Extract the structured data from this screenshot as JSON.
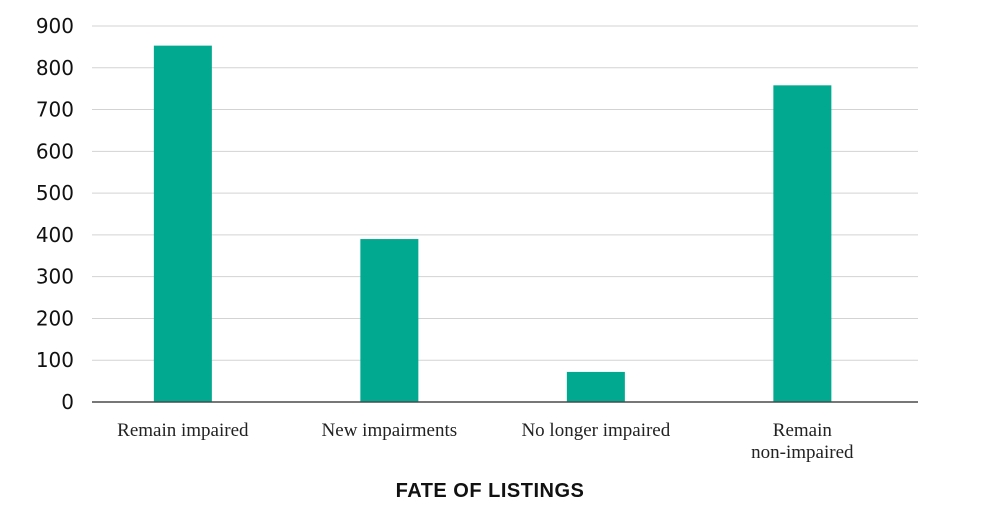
{
  "chart_data": {
    "type": "bar",
    "categories": [
      "Remain impaired",
      "New impairments",
      "No longer impaired",
      "Remain\nnon-impaired"
    ],
    "values": [
      853,
      390,
      72,
      758
    ],
    "title": "",
    "xlabel": "FATE OF LISTINGS",
    "ylabel": "",
    "ylim": [
      0,
      900
    ],
    "yticks": [
      0,
      100,
      200,
      300,
      400,
      500,
      600,
      700,
      800,
      900
    ],
    "grid": true,
    "bar_color": "#00a98f"
  }
}
